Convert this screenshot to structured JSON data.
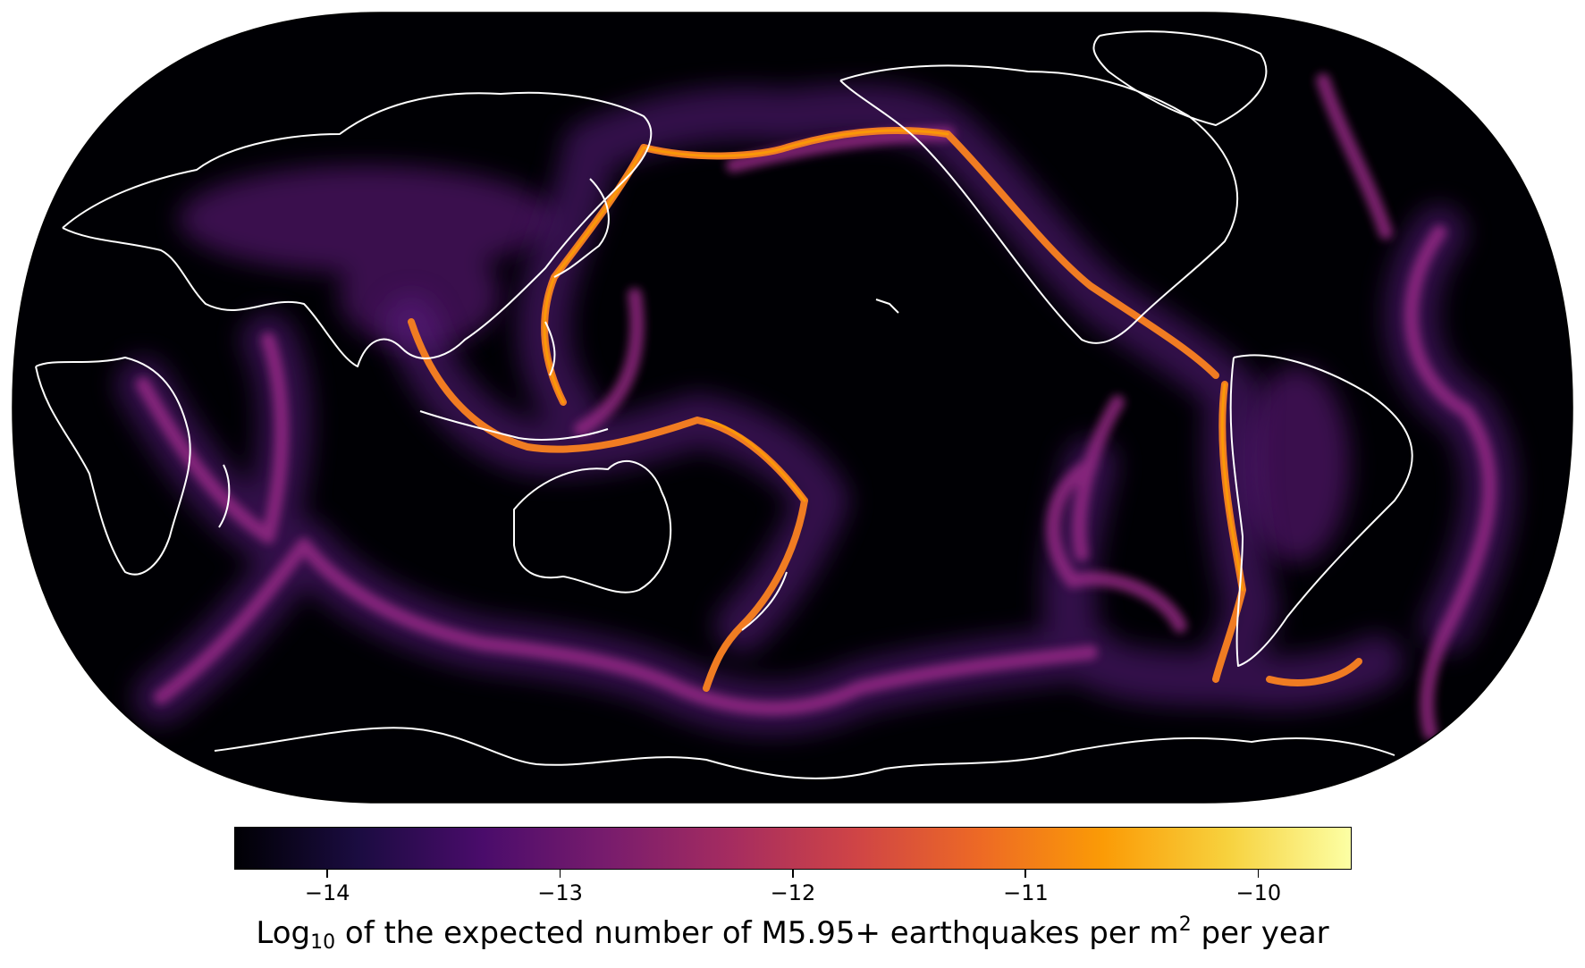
{
  "map": {
    "projection": "Robinson",
    "central_meridian": "180",
    "background": "#000004",
    "coastline_color": "#ffffff",
    "colormap": "inferno"
  },
  "colorbar": {
    "stops": [
      "#000004",
      "#1b0c41",
      "#4a0c6b",
      "#781c6d",
      "#a52c60",
      "#cf4446",
      "#ed6925",
      "#fb9b06",
      "#f7d13d",
      "#fcffa4"
    ],
    "range": [
      -14.4,
      -9.6
    ],
    "ticks": [
      {
        "value": -14,
        "label": "−14"
      },
      {
        "value": -13,
        "label": "−13"
      },
      {
        "value": -12,
        "label": "−12"
      },
      {
        "value": -11,
        "label": "−11"
      },
      {
        "value": -10,
        "label": "−10"
      }
    ],
    "label_pre": "Log",
    "label_sub": "10",
    "label_mid": " of the expected number of M5.95+ earthquakes per m",
    "label_sup": "2",
    "label_post": " per year"
  }
}
